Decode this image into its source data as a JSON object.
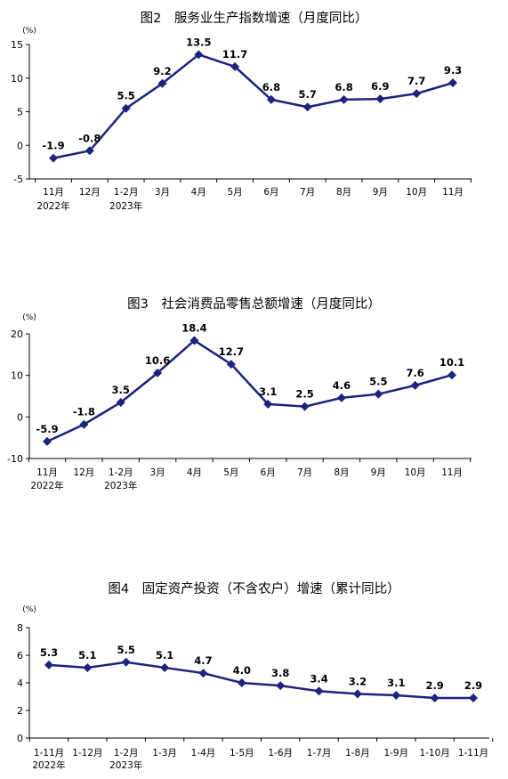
{
  "chart_data": [
    {
      "type": "line",
      "title": "图2　服务业生产指数增速（月度同比）",
      "ylabel": "(%)",
      "ylim": [
        -5,
        15
      ],
      "yticks": [
        -5,
        0,
        5,
        10,
        15
      ],
      "categories": [
        "11月",
        "12月",
        "1-2月",
        "3月",
        "4月",
        "5月",
        "6月",
        "7月",
        "8月",
        "9月",
        "10月",
        "11月"
      ],
      "year_labels": [
        "2022年",
        "",
        "2023年",
        "",
        "",
        "",
        "",
        "",
        "",
        "",
        "",
        ""
      ],
      "series": [
        {
          "values": [
            -1.9,
            -0.8,
            5.5,
            9.2,
            13.5,
            11.7,
            6.8,
            5.7,
            6.8,
            6.9,
            7.7,
            9.3
          ],
          "labels": [
            "-1.9",
            "-0.8",
            "5.5",
            "9.2",
            "13.5",
            "11.7",
            "6.8",
            "5.7",
            "6.8",
            "6.9",
            "7.7",
            "9.3"
          ]
        }
      ],
      "color": "#1a237e",
      "grid": false,
      "legend": "none"
    },
    {
      "type": "line",
      "title": "图3　社会消费品零售总额增速（月度同比）",
      "ylabel": "(%)",
      "ylim": [
        -10,
        20
      ],
      "yticks": [
        -10,
        0,
        10,
        20
      ],
      "categories": [
        "11月",
        "12月",
        "1-2月",
        "3月",
        "4月",
        "5月",
        "6月",
        "7月",
        "8月",
        "9月",
        "10月",
        "11月"
      ],
      "year_labels": [
        "2022年",
        "",
        "2023年",
        "",
        "",
        "",
        "",
        "",
        "",
        "",
        "",
        ""
      ],
      "series": [
        {
          "values": [
            -5.9,
            -1.8,
            3.5,
            10.6,
            18.4,
            12.7,
            3.1,
            2.5,
            4.6,
            5.5,
            7.6,
            10.1
          ],
          "labels": [
            "-5.9",
            "-1.8",
            "3.5",
            "10.6",
            "18.4",
            "12.7",
            "3.1",
            "2.5",
            "4.6",
            "5.5",
            "7.6",
            "10.1"
          ]
        }
      ],
      "color": "#1a237e",
      "grid": false,
      "legend": "none"
    },
    {
      "type": "line",
      "title": "图4　固定资产投资（不含农户）增速（累计同比）",
      "ylabel": "(%)",
      "ylim": [
        0,
        8
      ],
      "yticks": [
        0,
        2,
        4,
        6,
        8
      ],
      "categories": [
        "1-11月",
        "1-12月",
        "1-2月",
        "1-3月",
        "1-4月",
        "1-5月",
        "1-6月",
        "1-7月",
        "1-8月",
        "1-9月",
        "1-10月",
        "1-11月"
      ],
      "year_labels": [
        "2022年",
        "",
        "2023年",
        "",
        "",
        "",
        "",
        "",
        "",
        "",
        "",
        ""
      ],
      "series": [
        {
          "values": [
            5.3,
            5.1,
            5.5,
            5.1,
            4.7,
            4.0,
            3.8,
            3.4,
            3.2,
            3.1,
            2.9,
            2.9
          ],
          "labels": [
            "5.3",
            "5.1",
            "5.5",
            "5.1",
            "4.7",
            "4.0",
            "3.8",
            "3.4",
            "3.2",
            "3.1",
            "2.9",
            "2.9"
          ]
        }
      ],
      "color": "#1a237e",
      "grid": false,
      "legend": "none"
    }
  ]
}
